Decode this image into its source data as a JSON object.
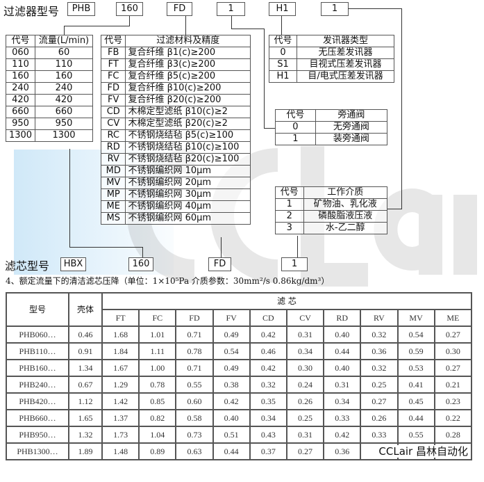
{
  "model_code": {
    "label": "过滤器型号",
    "boxes": [
      "PHB",
      "160",
      "FD",
      "1",
      "H1",
      "1"
    ]
  },
  "element_code": {
    "label": "滤芯型号",
    "boxes": [
      "HBX",
      "160",
      "FD",
      "1"
    ]
  },
  "flow_table": {
    "headers": [
      "代号",
      "流量(L/min)"
    ],
    "rows": [
      [
        "060",
        "60"
      ],
      [
        "110",
        "110"
      ],
      [
        "160",
        "160"
      ],
      [
        "240",
        "240"
      ],
      [
        "420",
        "420"
      ],
      [
        "660",
        "660"
      ],
      [
        "950",
        "950"
      ],
      [
        "1300",
        "1300"
      ]
    ]
  },
  "material_table": {
    "headers": [
      "代号",
      "过滤材料及精度"
    ],
    "rows": [
      [
        "FB",
        "复合纤维  β1(c)≥200"
      ],
      [
        "FT",
        "复合纤维  β3(c)≥200"
      ],
      [
        "FC",
        "复合纤维  β5(c)≥200"
      ],
      [
        "FD",
        "复合纤维  β10(c)≥200"
      ],
      [
        "FV",
        "复合纤维  β20(c)≥200"
      ],
      [
        "CD",
        "木棉定型滤纸  β10(c)≥2"
      ],
      [
        "CV",
        "木棉定型滤纸  β20(c)≥2"
      ],
      [
        "RC",
        "不锈钢烧结毡  β5(c)≥100"
      ],
      [
        "RD",
        "不锈钢烧结毡  β10(c)≥100"
      ],
      [
        "RV",
        "不锈钢烧结毡  β20(c)≥100"
      ],
      [
        "MD",
        "不锈钢编织网 10μm"
      ],
      [
        "MV",
        "不锈钢编织网 20μm"
      ],
      [
        "MP",
        "不锈钢编织网 30μm"
      ],
      [
        "ME",
        "不锈钢编织网 40μm"
      ],
      [
        "MS",
        "不锈钢编织网 60μm"
      ]
    ]
  },
  "signal_table": {
    "headers": [
      "代号",
      "发讯器类型"
    ],
    "rows": [
      [
        "0",
        "无压差发讯器"
      ],
      [
        "S1",
        "目视式压差发讯器"
      ],
      [
        "H1",
        "目/电式压差发讯器"
      ]
    ]
  },
  "bypass_table": {
    "headers": [
      "代号",
      "旁通阀"
    ],
    "rows": [
      [
        "0",
        "无旁通阀"
      ],
      [
        "1",
        "装旁通阀"
      ]
    ]
  },
  "medium_table": {
    "headers": [
      "代号",
      "工作介质"
    ],
    "rows": [
      [
        "1",
        "矿物油、乳化液"
      ],
      [
        "2",
        "磷酸脂液压液"
      ],
      [
        "3",
        "水-乙二醇"
      ]
    ]
  },
  "pressure_drop": {
    "caption": "4、额定流量下的清洁滤芯压降（单位：1×10⁵Pa  介质参数：30mm²/s  0.86kg/dm³）",
    "col_model": "型号",
    "col_housing": "壳体",
    "group_header": "滤    芯",
    "element_cols": [
      "FT",
      "FC",
      "FD",
      "FV",
      "CD",
      "CV",
      "RD",
      "RV",
      "MV",
      "ME"
    ],
    "rows": [
      [
        "PHB060…",
        "0.46",
        "1.68",
        "1.01",
        "0.71",
        "0.49",
        "0.42",
        "0.31",
        "0.40",
        "0.32",
        "0.54",
        "0.27"
      ],
      [
        "PHB110…",
        "0.91",
        "1.84",
        "1.11",
        "0.78",
        "0.54",
        "0.46",
        "0.34",
        "0.44",
        "0.36",
        "0.59",
        "0.30"
      ],
      [
        "PHB160…",
        "1.34",
        "1.67",
        "1.00",
        "0.71",
        "0.49",
        "0.42",
        "0.30",
        "0.40",
        "0.32",
        "0.53",
        "0.27"
      ],
      [
        "PHB240…",
        "0.67",
        "1.29",
        "0.78",
        "0.55",
        "0.38",
        "0.32",
        "0.24",
        "0.31",
        "0.25",
        "0.41",
        "0.21"
      ],
      [
        "PHB420…",
        "1.12",
        "1.42",
        "0.85",
        "0.60",
        "0.42",
        "0.35",
        "0.26",
        "0.34",
        "0.27",
        "0.45",
        "0.23"
      ],
      [
        "PHB660…",
        "1.65",
        "1.37",
        "0.82",
        "0.58",
        "0.40",
        "0.34",
        "0.25",
        "0.33",
        "0.26",
        "0.44",
        "0.22"
      ],
      [
        "PHB950…",
        "1.32",
        "1.73",
        "1.04",
        "0.73",
        "0.51",
        "0.43",
        "0.31",
        "0.42",
        "0.33",
        "0.55",
        "0.28"
      ],
      [
        "PHB1300…",
        "1.89",
        "1.48",
        "0.89",
        "0.63",
        "0.44",
        "0.37",
        "0.27",
        "0.36",
        "",
        "",
        ""
      ]
    ]
  },
  "watermark": {
    "text": "CCLair",
    "brand": "CCLair 昌林自动化"
  },
  "colors": {
    "watermark_blue": "#78bee b",
    "line": "#333333"
  }
}
